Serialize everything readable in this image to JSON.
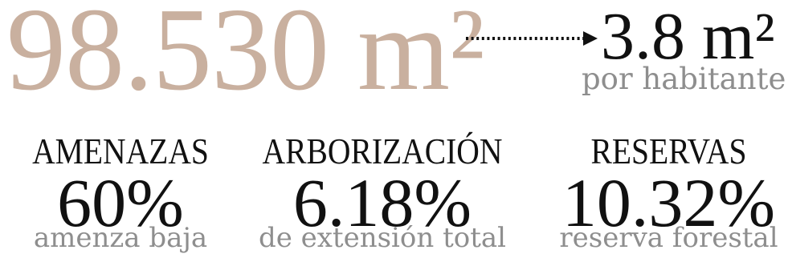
{
  "headline": {
    "total_area": "98.530 m²",
    "per_capita_value": "3.8 m²",
    "per_capita_label": "por habitante"
  },
  "stats": [
    {
      "title": "AMENAZAS",
      "value": "60%",
      "description": "amenza baja"
    },
    {
      "title": "ARBORIZACIÓN",
      "value": "6.18%",
      "description": "de extensión total"
    },
    {
      "title": "RESERVAS",
      "value": "10.32%",
      "description": "reserva forestal"
    }
  ],
  "colors": {
    "accent": "#c9b09f",
    "dark_text": "#111111",
    "muted_text": "#8e8e8e"
  },
  "icons": {
    "arrow": "dotted-arrow-right-icon"
  }
}
